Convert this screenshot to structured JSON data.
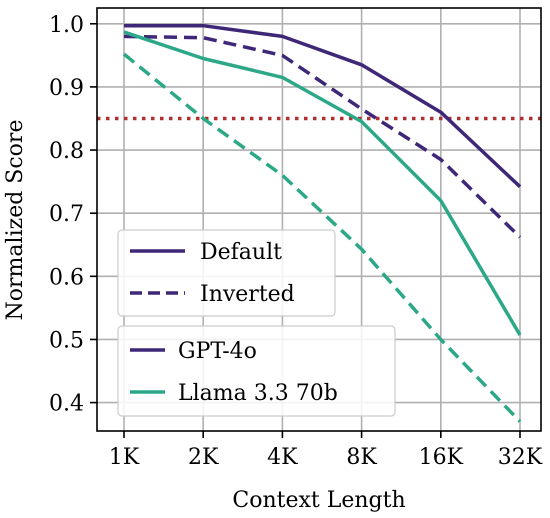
{
  "chart_data": {
    "type": "line",
    "xlabel": "Context Length",
    "ylabel": "Normalized Score",
    "categories": [
      "1K",
      "2K",
      "4K",
      "8K",
      "16K",
      "32K"
    ],
    "yticks": [
      "0.4",
      "0.5",
      "0.6",
      "0.7",
      "0.8",
      "0.9",
      "1.0"
    ],
    "ylim": [
      0.355,
      1.025
    ],
    "grid": true,
    "series": [
      {
        "model": "GPT-4o",
        "variant": "Default",
        "color": "#3f2778",
        "dash": "solid",
        "values": [
          0.997,
          0.997,
          0.98,
          0.935,
          0.86,
          0.742
        ]
      },
      {
        "model": "GPT-4o",
        "variant": "Inverted",
        "color": "#3f2778",
        "dash": "dashed",
        "values": [
          0.98,
          0.978,
          0.95,
          0.865,
          0.785,
          0.662
        ]
      },
      {
        "model": "Llama 3.3 70b",
        "variant": "Default",
        "color": "#2ca888",
        "dash": "solid",
        "values": [
          0.987,
          0.945,
          0.915,
          0.845,
          0.72,
          0.507
        ]
      },
      {
        "model": "Llama 3.3 70b",
        "variant": "Inverted",
        "color": "#2ca888",
        "dash": "dashed",
        "values": [
          0.952,
          0.85,
          0.76,
          0.643,
          0.5,
          0.37
        ]
      }
    ],
    "reference_line": {
      "value": 0.85,
      "color": "#b03030",
      "style": "dotted"
    },
    "legend_style": {
      "title": "",
      "entries": [
        {
          "label": "Default",
          "dash": "solid"
        },
        {
          "label": "Inverted",
          "dash": "dashed"
        }
      ],
      "placement": "center-left"
    },
    "legend_model": {
      "entries": [
        {
          "label": "GPT-4o",
          "color": "#3f2778"
        },
        {
          "label": "Llama 3.3 70b",
          "color": "#2ca888"
        }
      ],
      "placement": "lower-left"
    }
  }
}
